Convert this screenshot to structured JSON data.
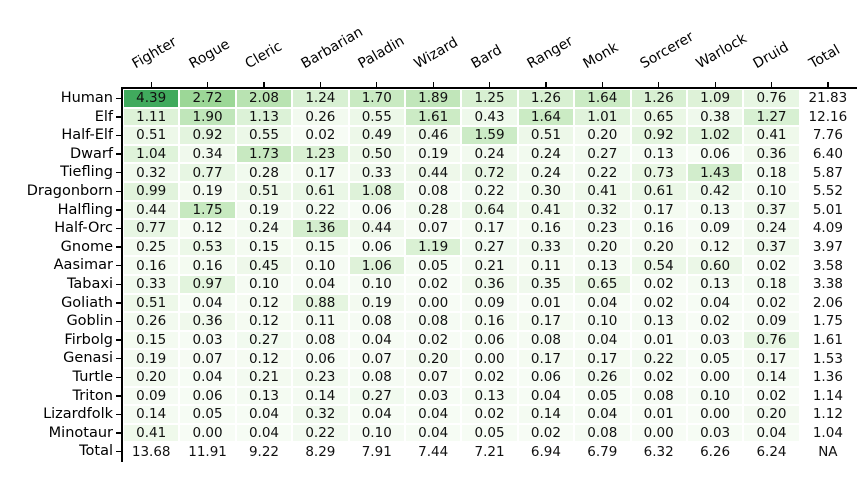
{
  "chart_data": {
    "type": "heatmap",
    "title": "",
    "columns": [
      "Fighter",
      "Rogue",
      "Cleric",
      "Barbarian",
      "Paladin",
      "Wizard",
      "Bard",
      "Ranger",
      "Monk",
      "Sorcerer",
      "Warlock",
      "Druid",
      "Total"
    ],
    "rows": [
      {
        "label": "Human",
        "values": [
          4.39,
          2.72,
          2.08,
          1.24,
          1.7,
          1.89,
          1.25,
          1.26,
          1.64,
          1.26,
          1.09,
          0.76,
          21.83
        ]
      },
      {
        "label": "Elf",
        "values": [
          1.11,
          1.9,
          1.13,
          0.26,
          0.55,
          1.61,
          0.43,
          1.64,
          1.01,
          0.65,
          0.38,
          1.27,
          12.16
        ]
      },
      {
        "label": "Half-Elf",
        "values": [
          0.51,
          0.92,
          0.55,
          0.02,
          0.49,
          0.46,
          1.59,
          0.51,
          0.2,
          0.92,
          1.02,
          0.41,
          7.76
        ]
      },
      {
        "label": "Dwarf",
        "values": [
          1.04,
          0.34,
          1.73,
          1.23,
          0.5,
          0.19,
          0.24,
          0.24,
          0.27,
          0.13,
          0.06,
          0.36,
          6.4
        ]
      },
      {
        "label": "Tiefling",
        "values": [
          0.32,
          0.77,
          0.28,
          0.17,
          0.33,
          0.44,
          0.72,
          0.24,
          0.22,
          0.73,
          1.43,
          0.18,
          5.87
        ]
      },
      {
        "label": "Dragonborn",
        "values": [
          0.99,
          0.19,
          0.51,
          0.61,
          1.08,
          0.08,
          0.22,
          0.3,
          0.41,
          0.61,
          0.42,
          0.1,
          5.52
        ]
      },
      {
        "label": "Halfling",
        "values": [
          0.44,
          1.75,
          0.19,
          0.22,
          0.06,
          0.28,
          0.64,
          0.41,
          0.32,
          0.17,
          0.13,
          0.37,
          5.01
        ]
      },
      {
        "label": "Half-Orc",
        "values": [
          0.77,
          0.12,
          0.24,
          1.36,
          0.44,
          0.07,
          0.17,
          0.16,
          0.23,
          0.16,
          0.09,
          0.24,
          4.09
        ]
      },
      {
        "label": "Gnome",
        "values": [
          0.25,
          0.53,
          0.15,
          0.15,
          0.06,
          1.19,
          0.27,
          0.33,
          0.2,
          0.2,
          0.12,
          0.37,
          3.97
        ]
      },
      {
        "label": "Aasimar",
        "values": [
          0.16,
          0.16,
          0.45,
          0.1,
          1.06,
          0.05,
          0.21,
          0.11,
          0.13,
          0.54,
          0.6,
          0.02,
          3.58
        ]
      },
      {
        "label": "Tabaxi",
        "values": [
          0.33,
          0.97,
          0.1,
          0.04,
          0.1,
          0.02,
          0.36,
          0.35,
          0.65,
          0.02,
          0.13,
          0.18,
          3.38
        ]
      },
      {
        "label": "Goliath",
        "values": [
          0.51,
          0.04,
          0.12,
          0.88,
          0.19,
          0.0,
          0.09,
          0.01,
          0.04,
          0.02,
          0.04,
          0.02,
          2.06
        ]
      },
      {
        "label": "Goblin",
        "values": [
          0.26,
          0.36,
          0.12,
          0.11,
          0.08,
          0.08,
          0.16,
          0.17,
          0.1,
          0.13,
          0.02,
          0.09,
          1.75
        ]
      },
      {
        "label": "Firbolg",
        "values": [
          0.15,
          0.03,
          0.27,
          0.08,
          0.04,
          0.02,
          0.06,
          0.08,
          0.04,
          0.01,
          0.03,
          0.76,
          1.61
        ]
      },
      {
        "label": "Genasi",
        "values": [
          0.19,
          0.07,
          0.12,
          0.06,
          0.07,
          0.2,
          0.0,
          0.17,
          0.17,
          0.22,
          0.05,
          0.17,
          1.53
        ]
      },
      {
        "label": "Turtle",
        "values": [
          0.2,
          0.04,
          0.21,
          0.23,
          0.08,
          0.07,
          0.02,
          0.06,
          0.26,
          0.02,
          0.0,
          0.14,
          1.36
        ]
      },
      {
        "label": "Triton",
        "values": [
          0.09,
          0.06,
          0.13,
          0.14,
          0.27,
          0.03,
          0.13,
          0.04,
          0.05,
          0.08,
          0.1,
          0.02,
          1.14
        ]
      },
      {
        "label": "Lizardfolk",
        "values": [
          0.14,
          0.05,
          0.04,
          0.32,
          0.04,
          0.04,
          0.02,
          0.14,
          0.04,
          0.01,
          0.0,
          0.2,
          1.12
        ]
      },
      {
        "label": "Minotaur",
        "values": [
          0.41,
          0.0,
          0.04,
          0.22,
          0.1,
          0.04,
          0.05,
          0.02,
          0.08,
          0.0,
          0.03,
          0.04,
          1.04
        ]
      },
      {
        "label": "Total",
        "values": [
          13.68,
          11.91,
          9.22,
          8.29,
          7.91,
          7.44,
          7.21,
          6.94,
          6.79,
          6.32,
          6.26,
          6.24,
          "NA"
        ]
      }
    ],
    "value_decimals": 2,
    "colormap": {
      "name": "greens",
      "vmin": 0,
      "vmax": 7,
      "anchors": [
        "#f7fcf5",
        "#e5f5e0",
        "#c7e9c0",
        "#a1d99b",
        "#74c476",
        "#41ab5d",
        "#238b45",
        "#006d2c",
        "#00441b"
      ]
    },
    "shading": {
      "exclude_row": "Total",
      "exclude_column": "Total"
    },
    "layout_hints": {
      "x_axis_position": "top",
      "x_label_rotation_deg": 30,
      "grid": false,
      "legend": false,
      "spines_visible": [
        "top",
        "left"
      ],
      "text_color": "#000000",
      "background": "#ffffff"
    }
  }
}
